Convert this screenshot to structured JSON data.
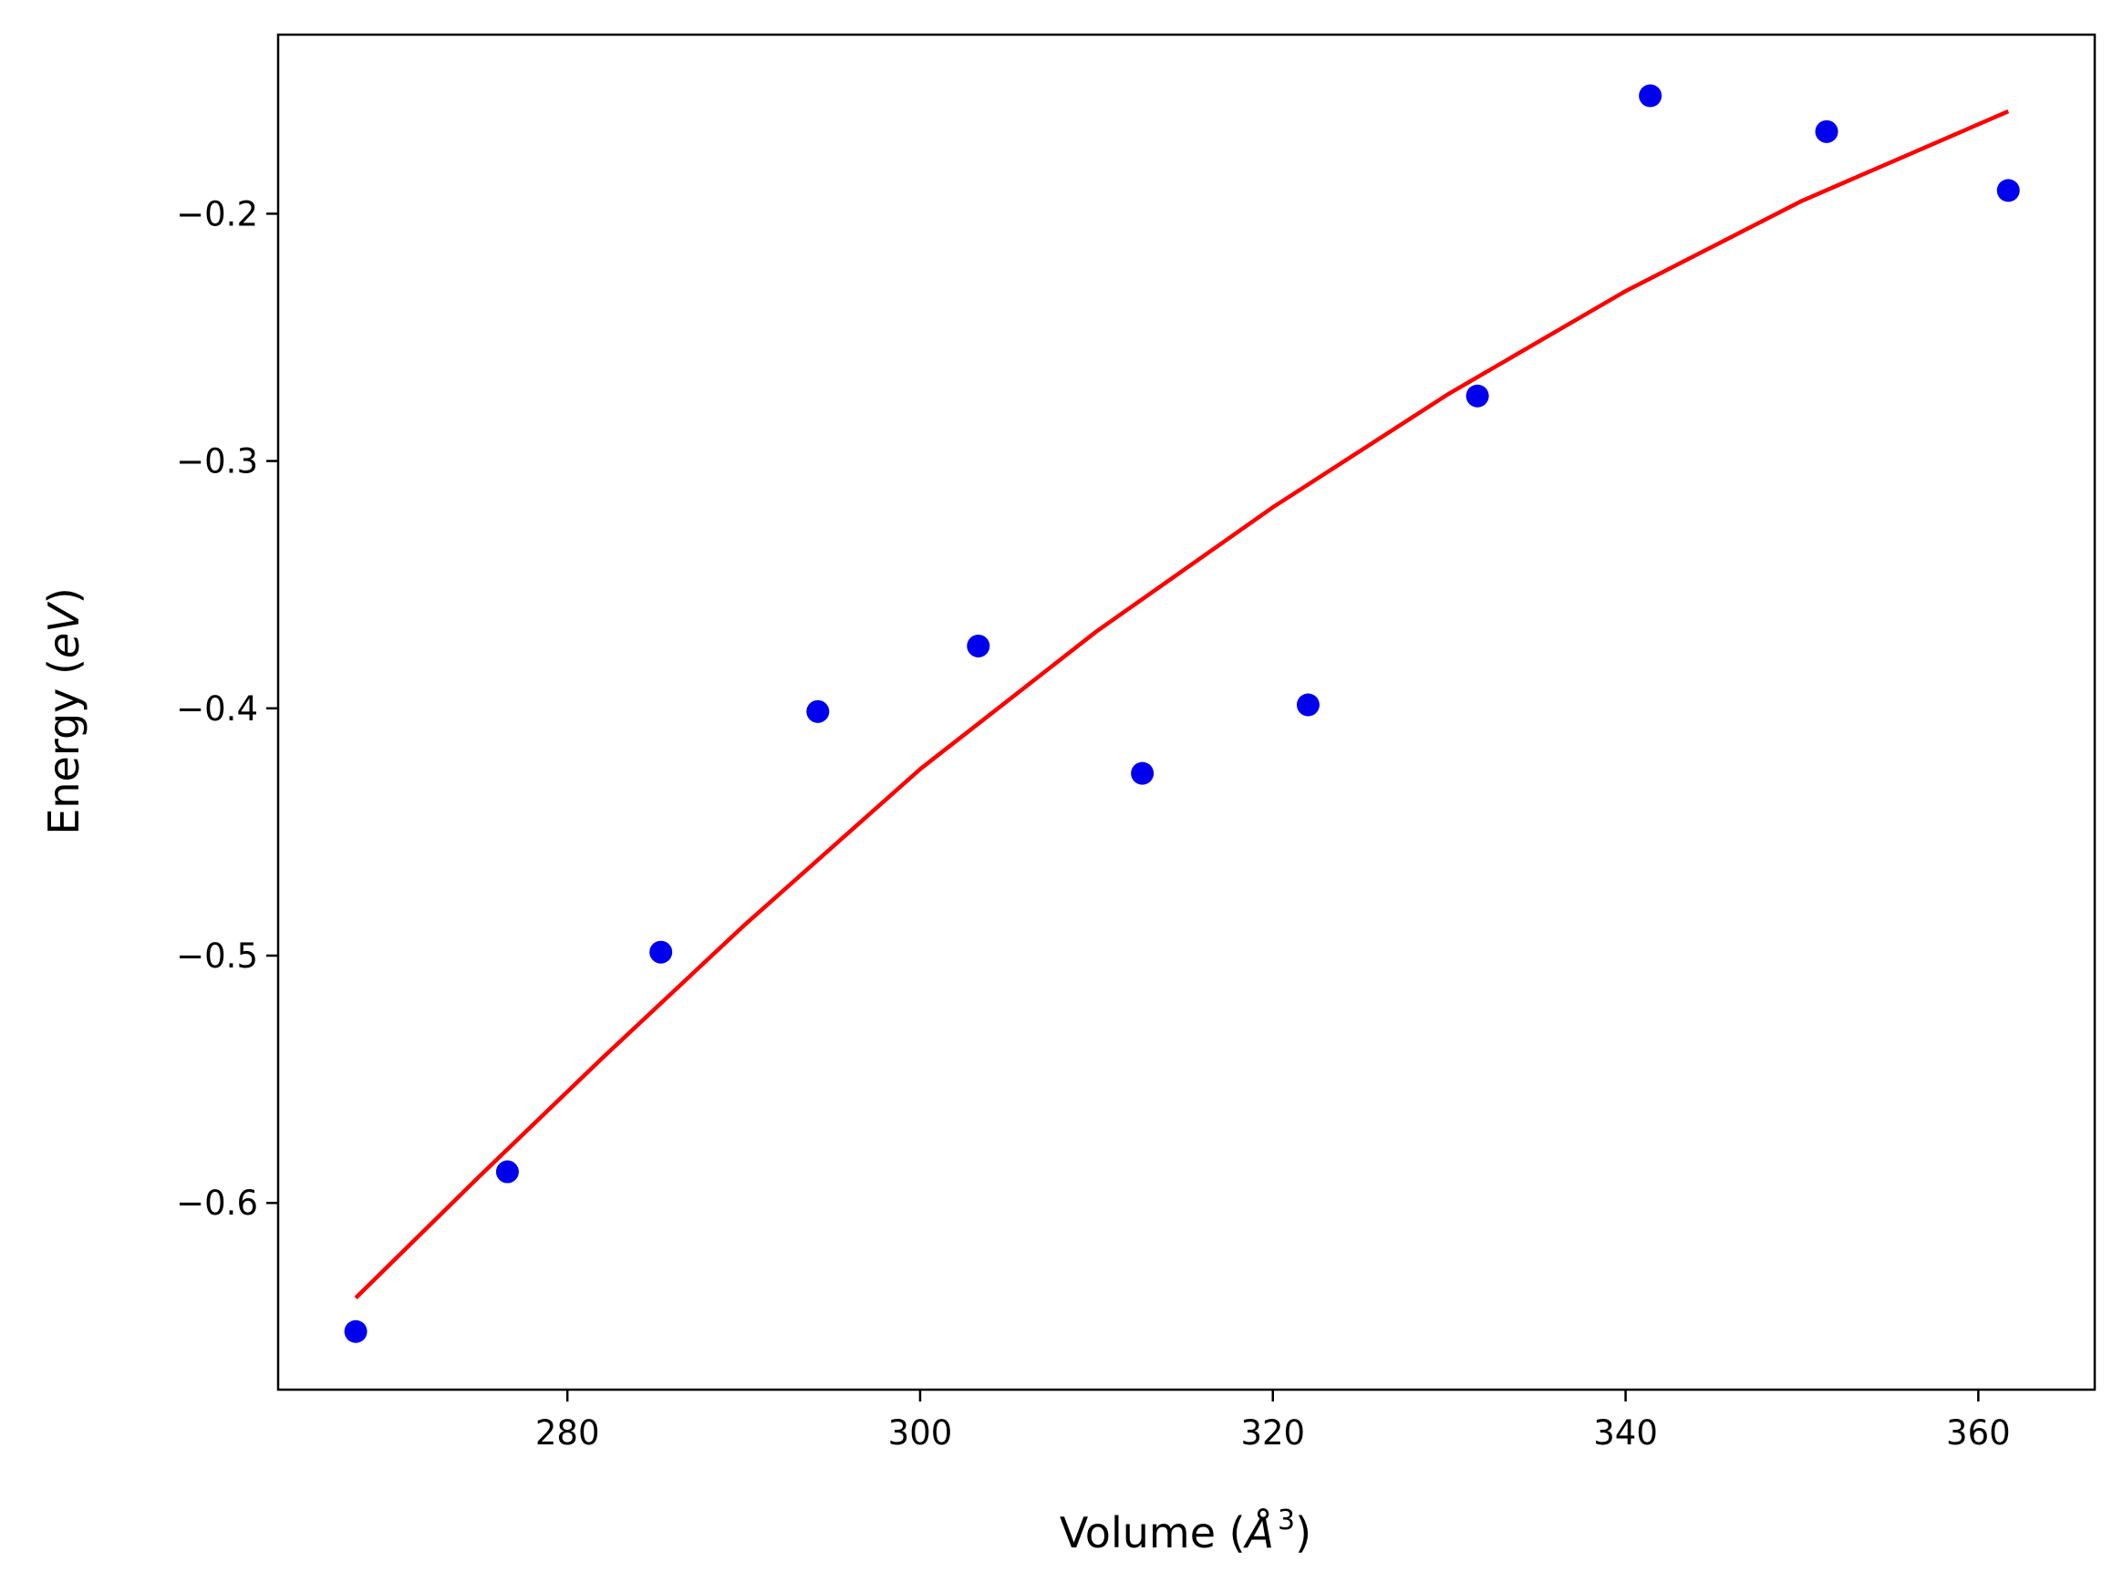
{
  "chart_data": {
    "type": "scatter",
    "title": "",
    "xlabel": {
      "prefix": "Volume (",
      "symbol": "Å",
      "superscript": "3",
      "suffix": ")"
    },
    "ylabel": {
      "prefix": "Energy (",
      "symbol": "eV",
      "suffix": ")"
    },
    "xlim": [
      263.6,
      366.6
    ],
    "ylim": [
      -0.6755,
      -0.1276
    ],
    "x_ticks": [
      280,
      300,
      320,
      340,
      360
    ],
    "x_tick_labels": [
      "280",
      "300",
      "320",
      "340",
      "360"
    ],
    "y_ticks": [
      -0.2,
      -0.3,
      -0.4,
      -0.5,
      -0.6
    ],
    "y_tick_labels": [
      "−0.2",
      "−0.3",
      "−0.4",
      "−0.5",
      "−0.6"
    ],
    "grid": false,
    "legend": "none",
    "series": [
      {
        "kind": "points",
        "color": "#0000ee",
        "x": [
          268.0,
          276.6,
          285.3,
          294.2,
          303.3,
          312.6,
          322.0,
          331.6,
          341.4,
          351.4,
          361.7
        ],
        "y": [
          -0.652,
          -0.5874,
          -0.4986,
          -0.4013,
          -0.3748,
          -0.4263,
          -0.3986,
          -0.2737,
          -0.1523,
          -0.1668,
          -0.1906
        ]
      },
      {
        "kind": "fit-line",
        "color": "#ff0000",
        "x": [
          268.0,
          275.0,
          282.0,
          290.0,
          300.0,
          310.0,
          320.0,
          330.0,
          340.0,
          350.0,
          361.7
        ],
        "y": [
          -0.6384,
          -0.5893,
          -0.5413,
          -0.4879,
          -0.4246,
          -0.3689,
          -0.3187,
          -0.2727,
          -0.2313,
          -0.1948,
          -0.1586
        ]
      }
    ]
  }
}
